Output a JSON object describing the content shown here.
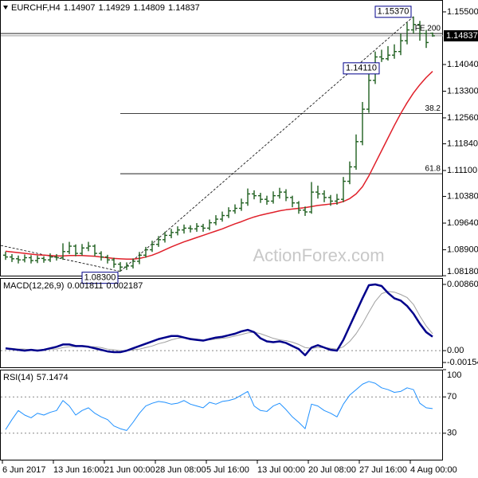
{
  "chart_data": [
    {
      "type": "ohlc",
      "title": "EURCHF,H4",
      "watermark": "ActionForex.com",
      "categories": [
        "6 Jun 2017",
        null,
        null,
        null,
        null,
        null,
        null,
        null,
        "13 Jun 16:00",
        null,
        null,
        null,
        null,
        null,
        null,
        null,
        "21 Jun 00:00",
        null,
        null,
        null,
        null,
        null,
        null,
        null,
        "28 Jun 08:00",
        null,
        null,
        null,
        null,
        null,
        null,
        null,
        "5 Jul 16:00",
        null,
        null,
        null,
        null,
        null,
        null,
        null,
        "13 Jul 00:00",
        null,
        null,
        null,
        null,
        null,
        null,
        null,
        "20 Jul 08:00",
        null,
        null,
        null,
        null,
        null,
        null,
        null,
        "27 Jul 16:00",
        null,
        null,
        null,
        null,
        null,
        null,
        null,
        "4 Aug 00:00",
        null,
        null,
        null
      ],
      "open": [
        1.0875,
        1.087,
        1.0865,
        1.0862,
        1.0868,
        1.086,
        1.0866,
        1.0862,
        1.087,
        1.0868,
        1.0885,
        1.09,
        1.088,
        1.0895,
        1.09,
        1.088,
        1.087,
        1.0862,
        1.085,
        1.0842,
        1.0845,
        1.0858,
        1.0875,
        1.089,
        1.0905,
        1.0918,
        1.093,
        1.0938,
        1.0945,
        1.095,
        1.0948,
        1.0955,
        1.095,
        1.0965,
        1.0975,
        1.0985,
        1.0998,
        1.1005,
        1.102,
        1.1045,
        1.104,
        1.103,
        1.1025,
        1.104,
        1.105,
        1.1035,
        1.102,
        1.1,
        1.0995,
        1.105,
        1.1045,
        1.1035,
        1.1025,
        1.103,
        1.108,
        1.112,
        1.119,
        1.128,
        1.136,
        1.1425,
        1.142,
        1.143,
        1.144,
        1.147,
        1.15,
        1.1515,
        1.149,
        1.14907
      ],
      "high": [
        1.0885,
        1.0878,
        1.0874,
        1.0877,
        1.0875,
        1.0874,
        1.0872,
        1.088,
        1.0878,
        1.0908,
        1.0912,
        1.0905,
        1.0906,
        1.0912,
        1.0905,
        1.0886,
        1.0876,
        1.0868,
        1.0856,
        1.0855,
        1.0866,
        1.0884,
        1.0898,
        1.0915,
        1.0928,
        1.094,
        1.0948,
        1.0955,
        1.096,
        1.0958,
        1.0964,
        1.0962,
        1.0974,
        1.0986,
        1.0996,
        1.1008,
        1.1016,
        1.1032,
        1.106,
        1.1055,
        1.1048,
        1.104,
        1.1052,
        1.1062,
        1.1058,
        1.104,
        1.1025,
        1.101,
        1.1078,
        1.1068,
        1.1055,
        1.1042,
        1.1045,
        1.1092,
        1.1135,
        1.121,
        1.13,
        1.138,
        1.144,
        1.1445,
        1.1455,
        1.146,
        1.149,
        1.152,
        1.1537,
        1.1525,
        1.15,
        1.14929
      ],
      "low": [
        1.0862,
        1.0856,
        1.0852,
        1.0855,
        1.0852,
        1.0853,
        1.0854,
        1.0856,
        1.086,
        1.0862,
        1.0878,
        1.0872,
        1.0874,
        1.0886,
        1.0872,
        1.086,
        1.0852,
        1.084,
        1.083,
        1.0834,
        1.0838,
        1.085,
        1.0868,
        1.0884,
        1.0898,
        1.091,
        1.0922,
        1.093,
        1.0935,
        1.0938,
        1.094,
        1.094,
        1.0944,
        1.0958,
        1.0968,
        1.0978,
        1.099,
        1.0998,
        1.1012,
        1.103,
        1.102,
        1.1015,
        1.1018,
        1.1032,
        1.1025,
        1.1008,
        1.099,
        1.0984,
        1.099,
        1.1032,
        1.1022,
        1.1012,
        1.1015,
        1.1022,
        1.1072,
        1.1112,
        1.118,
        1.127,
        1.135,
        1.1411,
        1.1415,
        1.142,
        1.143,
        1.146,
        1.149,
        1.147,
        1.145,
        1.14809
      ],
      "close": [
        1.087,
        1.0865,
        1.0862,
        1.0868,
        1.086,
        1.0866,
        1.0862,
        1.087,
        1.0868,
        1.0885,
        1.09,
        1.088,
        1.0895,
        1.09,
        1.088,
        1.087,
        1.0862,
        1.085,
        1.0842,
        1.0845,
        1.0858,
        1.0875,
        1.089,
        1.0905,
        1.0918,
        1.093,
        1.0938,
        1.0945,
        1.095,
        1.0948,
        1.0955,
        1.095,
        1.0965,
        1.0975,
        1.0985,
        1.0998,
        1.1005,
        1.102,
        1.1045,
        1.104,
        1.103,
        1.1025,
        1.104,
        1.105,
        1.1035,
        1.102,
        1.1,
        1.0995,
        1.105,
        1.1045,
        1.1035,
        1.1025,
        1.103,
        1.108,
        1.112,
        1.119,
        1.128,
        1.136,
        1.1425,
        1.142,
        1.143,
        1.144,
        1.147,
        1.15,
        1.1515,
        1.149,
        1.1465,
        1.14837
      ],
      "color": "#1f5f1f",
      "overlay": {
        "color": "#e0202a",
        "values": [
          1.0886,
          1.0884,
          1.0882,
          1.088,
          1.0878,
          1.0876,
          1.0875,
          1.0874,
          1.0873,
          1.0873,
          1.0874,
          1.0874,
          1.0874,
          1.0873,
          1.0872,
          1.087,
          1.0868,
          1.0866,
          1.0865,
          1.0864,
          1.0864,
          1.0866,
          1.087,
          1.0875,
          1.0882,
          1.089,
          1.0898,
          1.0905,
          1.0912,
          1.0918,
          1.0924,
          1.093,
          1.0936,
          1.0942,
          1.0948,
          1.0955,
          1.0962,
          1.0968,
          1.0975,
          1.0981,
          1.0986,
          1.099,
          1.0994,
          1.0998,
          1.1001,
          1.1003,
          1.1005,
          1.1007,
          1.101,
          1.1013,
          1.1015,
          1.1017,
          1.1019,
          1.1024,
          1.1032,
          1.1045,
          1.1065,
          1.1095,
          1.113,
          1.1165,
          1.12,
          1.1235,
          1.1268,
          1.1298,
          1.1325,
          1.1348,
          1.1368,
          1.1385
        ]
      },
      "ylim": [
        1.0816,
        1.1583
      ],
      "yticks": [
        {
          "value": 1.155,
          "label": "1.15500"
        },
        {
          "value": 1.1404,
          "label": "1.14040"
        },
        {
          "value": 1.133,
          "label": "1.13300"
        },
        {
          "value": 1.1256,
          "label": "1.12560"
        },
        {
          "value": 1.1184,
          "label": "1.11840"
        },
        {
          "value": 1.111,
          "label": "1.11100"
        },
        {
          "value": 1.1038,
          "label": "1.10380"
        },
        {
          "value": 1.0964,
          "label": "1.09640"
        },
        {
          "value": 1.089,
          "label": "1.08900"
        },
        {
          "value": 1.0818,
          "label": "1.08180"
        }
      ],
      "grid": false,
      "annotations": [
        {
          "label": "1.15370",
          "value": 1.1537
        },
        {
          "label": "1.14110",
          "value": 1.1411
        },
        {
          "label": "1.08300",
          "value": 1.083
        }
      ],
      "fib_levels": [
        {
          "label": "FE 200",
          "value": 1.149,
          "kind": "expansion"
        },
        {
          "label": "38.2",
          "value": 1.1268,
          "kind": "retracement"
        },
        {
          "label": "61.8",
          "value": 1.1101,
          "kind": "retracement"
        }
      ],
      "trendline_start": 1.0902
    },
    {
      "type": "macd",
      "title": "MACD(12,26,9)",
      "series": [
        {
          "color": "#00008b",
          "values": [
            0.0003,
            0.0002,
            0.0001,
            0.0,
            0.0001,
            0.0,
            0.0001,
            0.0003,
            0.0005,
            0.0008,
            0.0008,
            0.0006,
            0.0006,
            0.0005,
            0.0003,
            0.0001,
            -0.0001,
            -0.0002,
            -0.0002,
            0.0,
            0.0003,
            0.0006,
            0.0009,
            0.0012,
            0.0015,
            0.0017,
            0.0019,
            0.0019,
            0.0017,
            0.0015,
            0.0014,
            0.0013,
            0.0015,
            0.0017,
            0.0018,
            0.002,
            0.0022,
            0.0025,
            0.0027,
            0.0024,
            0.0016,
            0.0012,
            0.0011,
            0.0012,
            0.001,
            0.0006,
            0.0002,
            -0.0006,
            0.0004,
            0.0007,
            0.0004,
            0.0001,
            0.0,
            0.0014,
            0.0032,
            0.005,
            0.0068,
            0.0085,
            0.008606,
            0.0084,
            0.0075,
            0.0068,
            0.0065,
            0.0058,
            0.0048,
            0.0035,
            0.0024,
            0.001811
          ]
        },
        {
          "color": "#a0a0a0",
          "values": [
            0.0003,
            0.0003,
            0.0002,
            0.0002,
            0.0001,
            0.0001,
            0.0001,
            0.0002,
            0.0002,
            0.0004,
            0.0005,
            0.0005,
            0.0006,
            0.0005,
            0.0005,
            0.0004,
            0.0002,
            0.0001,
            0.0,
            0.0,
            0.0001,
            0.0002,
            0.0004,
            0.0006,
            0.0009,
            0.0011,
            0.0014,
            0.0016,
            0.0017,
            0.0016,
            0.0015,
            0.0014,
            0.0014,
            0.0015,
            0.0016,
            0.0017,
            0.0019,
            0.0021,
            0.0023,
            0.0024,
            0.0022,
            0.0019,
            0.0016,
            0.0014,
            0.0013,
            0.0011,
            0.0008,
            0.0004,
            0.0003,
            0.0004,
            0.0004,
            0.0003,
            0.0002,
            0.0005,
            0.0012,
            0.0022,
            0.0035,
            0.005,
            0.0064,
            0.0074,
            0.0077,
            0.0076,
            0.0073,
            0.0069,
            0.006,
            0.0045,
            0.0032,
            0.002187
          ]
        }
      ],
      "ylim": [
        -0.001541,
        0.008606
      ],
      "yticks": [
        0.008606,
        {
          "value": 0,
          "label": "0.00"
        },
        -0.001541
      ],
      "grid": true
    },
    {
      "type": "rsi",
      "title": "RSI(14)",
      "color": "#1e90ff",
      "values": [
        34,
        45,
        55,
        50,
        47,
        52,
        50,
        53,
        55,
        66,
        60,
        50,
        55,
        58,
        52,
        48,
        45,
        38,
        35,
        33,
        42,
        52,
        60,
        63,
        65,
        64,
        62,
        63,
        66,
        62,
        60,
        58,
        64,
        62,
        65,
        66,
        68,
        72,
        76,
        60,
        55,
        54,
        60,
        63,
        56,
        48,
        42,
        35,
        62,
        60,
        55,
        52,
        48,
        62,
        72,
        78,
        84,
        87,
        85,
        80,
        78,
        75,
        76,
        80,
        78,
        63,
        58,
        57.1474
      ],
      "ylim": [
        0,
        100
      ],
      "yticks": [
        100,
        70,
        30
      ],
      "grid": true
    }
  ]
}
